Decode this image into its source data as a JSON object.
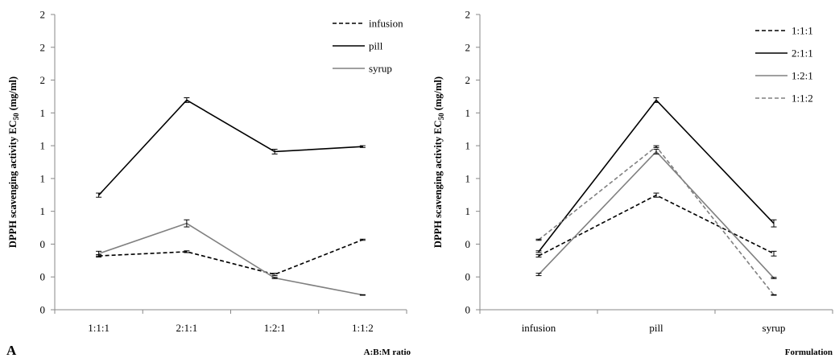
{
  "figure": {
    "panel_letter": "A"
  },
  "chart_data": [
    {
      "type": "line",
      "xlabel": "A:B:M ratio",
      "ylabel_main": "DPPH scavenging activity EC",
      "ylabel_sub": "50",
      "ylabel_unit": " (mg/ml)",
      "categories": [
        "1:1:1",
        "2:1:1",
        "1:2:1",
        "1:1:2"
      ],
      "ylim": [
        0,
        2
      ],
      "y_tick_labels": [
        "0",
        "0",
        "0",
        "1",
        "1",
        "1",
        "1",
        "2",
        "2",
        "2"
      ],
      "grid": false,
      "legend_position": "top-right",
      "series": [
        {
          "name": "infusion",
          "style": "dashed",
          "color": "#000000",
          "values": [
            0.365,
            0.393,
            0.239,
            0.474
          ],
          "errors": [
            0.008,
            0.006,
            0.008,
            0.004
          ]
        },
        {
          "name": "pill",
          "style": "solid",
          "color": "#000000",
          "values": [
            0.776,
            1.42,
            1.071,
            1.105
          ],
          "errors": [
            0.014,
            0.016,
            0.016,
            0.006
          ]
        },
        {
          "name": "syrup",
          "style": "solid",
          "color": "#808080",
          "values": [
            0.38,
            0.585,
            0.215,
            0.1
          ],
          "errors": [
            0.016,
            0.024,
            0.004,
            0.002
          ]
        }
      ]
    },
    {
      "type": "line",
      "xlabel": "Formulation",
      "ylabel_main": "DPPH scavenging activity EC",
      "ylabel_sub": "50",
      "ylabel_unit": " (mg/ml)",
      "categories": [
        "infusion",
        "pill",
        "syrup"
      ],
      "ylim": [
        0,
        2
      ],
      "y_tick_labels": [
        "0",
        "0",
        "0",
        "1",
        "1",
        "1",
        "1",
        "2",
        "2",
        "2"
      ],
      "grid": false,
      "legend_position": "top-right",
      "series": [
        {
          "name": "1:1:1",
          "style": "dashed",
          "color": "#000000",
          "values": [
            0.365,
            0.776,
            0.38
          ],
          "errors": [
            0.008,
            0.014,
            0.016
          ]
        },
        {
          "name": "2:1:1",
          "style": "solid",
          "color": "#000000",
          "values": [
            0.393,
            1.42,
            0.585
          ],
          "errors": [
            0.006,
            0.016,
            0.024
          ]
        },
        {
          "name": "1:2:1",
          "style": "solid",
          "color": "#808080",
          "values": [
            0.239,
            1.071,
            0.215
          ],
          "errors": [
            0.008,
            0.016,
            0.004
          ]
        },
        {
          "name": "1:1:2",
          "style": "dashed",
          "color": "#808080",
          "values": [
            0.474,
            1.105,
            0.1
          ],
          "errors": [
            0.004,
            0.006,
            0.002
          ]
        }
      ]
    }
  ]
}
